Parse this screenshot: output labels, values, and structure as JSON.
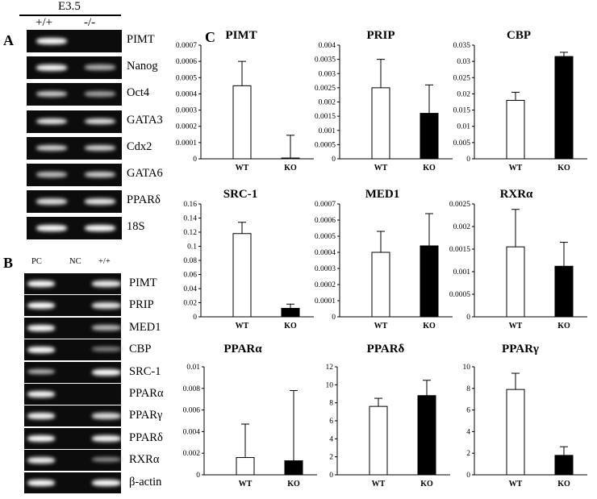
{
  "panels": {
    "a": "A",
    "b": "B",
    "c": "C"
  },
  "panel_a": {
    "group_label": "E3.5",
    "lanes": [
      "+/+",
      "-/-"
    ],
    "genes": [
      "PIMT",
      "Nanog",
      "Oct4",
      "GATA3",
      "Cdx2",
      "GATA6",
      "PPARδ",
      "18S"
    ],
    "band_intensity": [
      [
        1.0,
        0.0
      ],
      [
        0.95,
        0.55
      ],
      [
        0.7,
        0.45
      ],
      [
        0.9,
        0.85
      ],
      [
        0.75,
        0.75
      ],
      [
        0.65,
        0.75
      ],
      [
        0.8,
        0.85
      ],
      [
        1.0,
        1.0
      ]
    ]
  },
  "panel_b": {
    "lanes": [
      "PC",
      "NC",
      "+/+"
    ],
    "genes": [
      "PIMT",
      "PRIP",
      "MED1",
      "CBP",
      "SRC-1",
      "PPARα",
      "PPARγ",
      "PPARδ",
      "RXRα",
      "β-actin"
    ],
    "band_intensity": [
      [
        1.0,
        0.0,
        0.9
      ],
      [
        1.0,
        0.0,
        0.85
      ],
      [
        1.0,
        0.0,
        0.6
      ],
      [
        1.0,
        0.0,
        0.25
      ],
      [
        0.6,
        0.0,
        1.0
      ],
      [
        0.95,
        0.0,
        0.0
      ],
      [
        0.95,
        0.0,
        0.8
      ],
      [
        1.0,
        0.0,
        0.95
      ],
      [
        0.9,
        0.0,
        0.3
      ],
      [
        1.0,
        0.0,
        1.0
      ]
    ]
  },
  "chart_data": [
    {
      "type": "bar",
      "title": "PIMT",
      "categories": [
        "WT",
        "KO"
      ],
      "values": [
        0.00045,
        5e-06
      ],
      "errors": [
        0.00015,
        0.00014
      ],
      "ylim": [
        0,
        0.0007
      ],
      "yticks": [
        "0",
        "0.0001",
        "0.0002",
        "0.0003",
        "0.0004",
        "0.0005",
        "0.0006",
        "0.0007"
      ],
      "tickvals": [
        0,
        0.0001,
        0.0002,
        0.0003,
        0.0004,
        0.0005,
        0.0006,
        0.0007
      ],
      "fills": [
        "#ffffff",
        "#000000"
      ]
    },
    {
      "type": "bar",
      "title": "PRIP",
      "categories": [
        "WT",
        "KO"
      ],
      "values": [
        0.0025,
        0.0016
      ],
      "errors": [
        0.001,
        0.001
      ],
      "ylim": [
        0,
        0.004
      ],
      "yticks": [
        "0",
        "0.0005",
        "0.001",
        "0.0015",
        "0.002",
        "0.0025",
        "0.003",
        "0.0035",
        "0.004"
      ],
      "tickvals": [
        0,
        0.0005,
        0.001,
        0.0015,
        0.002,
        0.0025,
        0.003,
        0.0035,
        0.004
      ],
      "fills": [
        "#ffffff",
        "#000000"
      ]
    },
    {
      "type": "bar",
      "title": "CBP",
      "categories": [
        "WT",
        "KO"
      ],
      "values": [
        0.018,
        0.0315
      ],
      "errors": [
        0.0025,
        0.0013
      ],
      "ylim": [
        0,
        0.035
      ],
      "yticks": [
        "0",
        "0.005",
        "0.01",
        "0.015",
        "0.02",
        "0.025",
        "0.03",
        "0.035"
      ],
      "tickvals": [
        0,
        0.005,
        0.01,
        0.015,
        0.02,
        0.025,
        0.03,
        0.035
      ],
      "fills": [
        "#ffffff",
        "#000000"
      ]
    },
    {
      "type": "bar",
      "title": "SRC-1",
      "categories": [
        "WT",
        "KO"
      ],
      "values": [
        0.118,
        0.012
      ],
      "errors": [
        0.016,
        0.006
      ],
      "ylim": [
        0,
        0.16
      ],
      "yticks": [
        "0",
        "0.02",
        "0.04",
        "0.06",
        "0.08",
        "0.1",
        "0.12",
        "0.14",
        "0.16"
      ],
      "tickvals": [
        0,
        0.02,
        0.04,
        0.06,
        0.08,
        0.1,
        0.12,
        0.14,
        0.16
      ],
      "fills": [
        "#ffffff",
        "#000000"
      ]
    },
    {
      "type": "bar",
      "title": "MED1",
      "categories": [
        "WT",
        "KO"
      ],
      "values": [
        0.0004,
        0.00044
      ],
      "errors": [
        0.00013,
        0.0002
      ],
      "ylim": [
        0,
        0.0007
      ],
      "yticks": [
        "0",
        "0.0001",
        "0.0002",
        "0.0003",
        "0.0004",
        "0.0005",
        "0.0006",
        "0.0007"
      ],
      "tickvals": [
        0,
        0.0001,
        0.0002,
        0.0003,
        0.0004,
        0.0005,
        0.0006,
        0.0007
      ],
      "fills": [
        "#ffffff",
        "#000000"
      ]
    },
    {
      "type": "bar",
      "title": "RXRα",
      "categories": [
        "WT",
        "KO"
      ],
      "values": [
        0.00155,
        0.00112
      ],
      "errors": [
        0.00083,
        0.00053
      ],
      "ylim": [
        0,
        0.0025
      ],
      "yticks": [
        "0",
        "0.0005",
        "0.001",
        "0.0015",
        "0.002",
        "0.0025"
      ],
      "tickvals": [
        0,
        0.0005,
        0.001,
        0.0015,
        0.002,
        0.0025
      ],
      "fills": [
        "#ffffff",
        "#000000"
      ]
    },
    {
      "type": "bar",
      "title": "PPARα",
      "categories": [
        "WT",
        "KO"
      ],
      "values": [
        0.0016,
        0.0013
      ],
      "errors": [
        0.0031,
        0.0065
      ],
      "ylim": [
        0,
        0.01
      ],
      "yticks": [
        "0",
        "0.002",
        "0.004",
        "0.006",
        "0.008",
        "0.01"
      ],
      "tickvals": [
        0,
        0.002,
        0.004,
        0.006,
        0.008,
        0.01
      ],
      "fills": [
        "#ffffff",
        "#000000"
      ]
    },
    {
      "type": "bar",
      "title": "PPARδ",
      "categories": [
        "WT",
        "KO"
      ],
      "values": [
        7.6,
        8.8
      ],
      "errors": [
        0.9,
        1.7
      ],
      "ylim": [
        0,
        12
      ],
      "yticks": [
        "0",
        "2",
        "4",
        "6",
        "8",
        "10",
        "12"
      ],
      "tickvals": [
        0,
        2,
        4,
        6,
        8,
        10,
        12
      ],
      "fills": [
        "#ffffff",
        "#000000"
      ]
    },
    {
      "type": "bar",
      "title": "PPARγ",
      "categories": [
        "WT",
        "KO"
      ],
      "values": [
        7.9,
        1.8
      ],
      "errors": [
        1.5,
        0.8
      ],
      "ylim": [
        0,
        10
      ],
      "yticks": [
        "0",
        "2",
        "4",
        "6",
        "8",
        "10"
      ],
      "tickvals": [
        0,
        2,
        4,
        6,
        8,
        10
      ],
      "fills": [
        "#ffffff",
        "#000000"
      ]
    }
  ]
}
